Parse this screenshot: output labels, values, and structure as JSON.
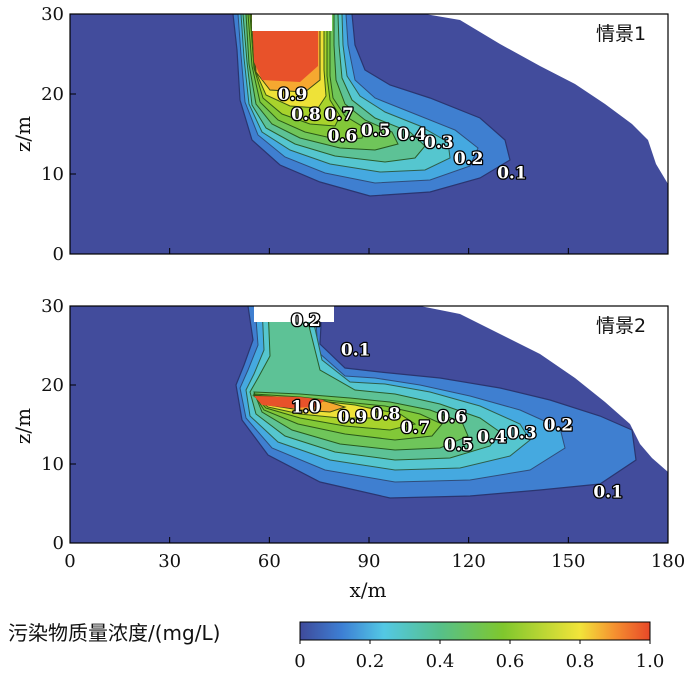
{
  "chart_data": [
    {
      "type": "heatmap",
      "panel_label": "情景1",
      "xlabel": "",
      "ylabel": "z/m",
      "xlim": [
        0,
        180
      ],
      "ylim": [
        0,
        30
      ],
      "y_ticks": [
        0,
        10,
        20,
        30
      ],
      "source_block": {
        "x": [
          54,
          77
        ],
        "z": [
          28,
          30
        ]
      },
      "contour_labels": [
        {
          "text": "0.9",
          "x": 67,
          "z": 20
        },
        {
          "text": "0.8",
          "x": 71,
          "z": 17.5
        },
        {
          "text": "0.7",
          "x": 81,
          "z": 17.5
        },
        {
          "text": "0.6",
          "x": 82,
          "z": 14.8
        },
        {
          "text": "0.5",
          "x": 92,
          "z": 15.5
        },
        {
          "text": "0.4",
          "x": 103,
          "z": 15
        },
        {
          "text": "0.3",
          "x": 111,
          "z": 14
        },
        {
          "text": "0.2",
          "x": 120,
          "z": 12
        },
        {
          "text": "0.1",
          "x": 133,
          "z": 10.2
        }
      ]
    },
    {
      "type": "heatmap",
      "panel_label": "情景2",
      "xlabel": "x/m",
      "ylabel": "z/m",
      "xlim": [
        0,
        180
      ],
      "ylim": [
        0,
        30
      ],
      "x_ticks": [
        0,
        30,
        60,
        90,
        120,
        150,
        180
      ],
      "y_ticks": [
        0,
        10,
        20,
        30
      ],
      "source_block": {
        "x": [
          54,
          78
        ],
        "z": [
          28,
          30
        ]
      },
      "contour_labels": [
        {
          "text": "0.2",
          "x": 71,
          "z": 28.2
        },
        {
          "text": "0.1",
          "x": 86,
          "z": 24.5
        },
        {
          "text": "1.0",
          "x": 71,
          "z": 17.3
        },
        {
          "text": "0.9",
          "x": 85,
          "z": 16
        },
        {
          "text": "0.8",
          "x": 95,
          "z": 16.4
        },
        {
          "text": "0.7",
          "x": 104,
          "z": 14.7
        },
        {
          "text": "0.6",
          "x": 115,
          "z": 16
        },
        {
          "text": "0.5",
          "x": 117,
          "z": 12.5
        },
        {
          "text": "0.4",
          "x": 127,
          "z": 13.5
        },
        {
          "text": "0.3",
          "x": 136,
          "z": 14
        },
        {
          "text": "0.2",
          "x": 147,
          "z": 15
        },
        {
          "text": "0.1",
          "x": 162,
          "z": 6.5
        }
      ]
    }
  ],
  "colorbar": {
    "title": "污染物质量浓度/(mg/L)",
    "min": 0,
    "max": 1.0,
    "tick_labels": [
      "0",
      "0.2",
      "0.4",
      "0.6",
      "0.8",
      "1.0"
    ],
    "colors": [
      "#3f4a9a",
      "#3d7fd4",
      "#53c8e4",
      "#56c08a",
      "#7fc72d",
      "#f2e43a",
      "#f59030",
      "#e84828"
    ]
  }
}
